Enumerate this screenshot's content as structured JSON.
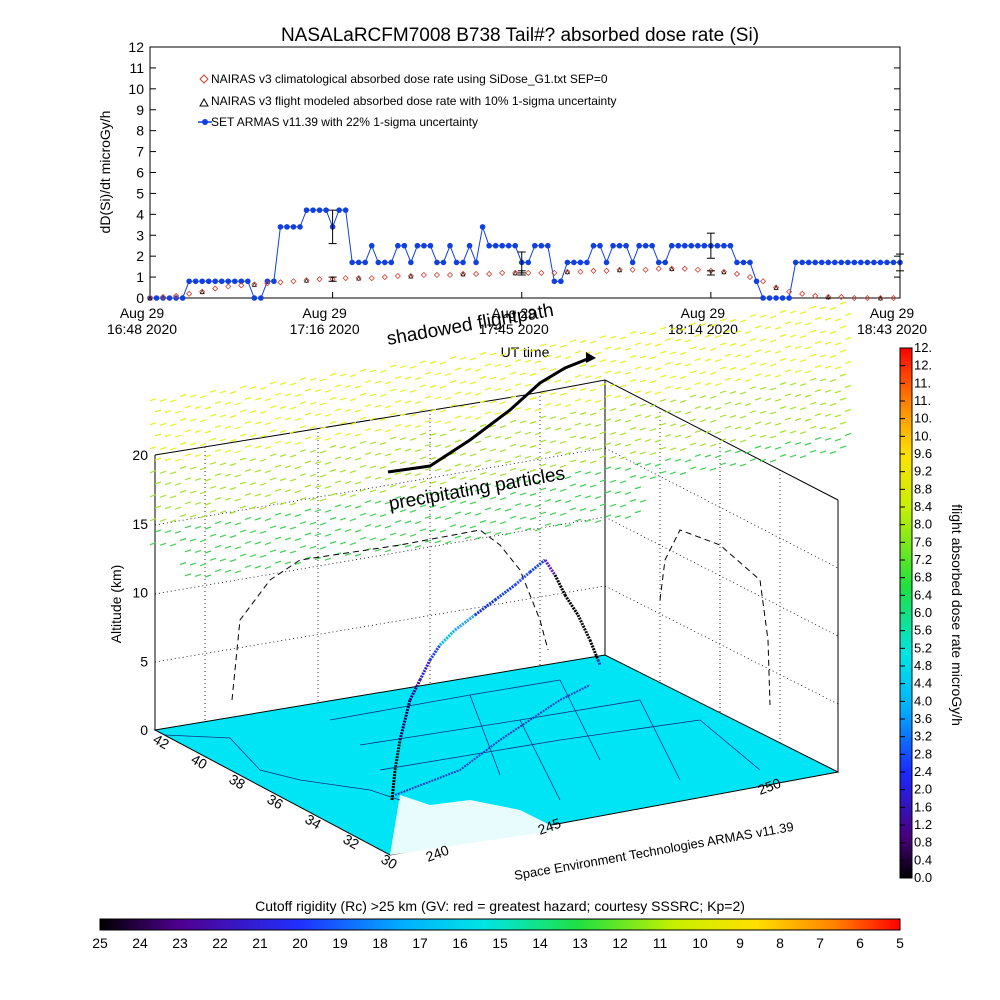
{
  "title": "NASALaRCFM7008  B738 Tail#? absorbed dose rate (Si)",
  "annotations": {
    "shadowed": "shadowed flightpath",
    "precip": "precipitating particles"
  },
  "credit": "Space Environment Technologies ARMAS v11.39",
  "colors": {
    "nairas_clim": "#d04030",
    "nairas_flight": "#000000",
    "armas": "#1040e0",
    "cutoff_surface": "#00e5f5"
  },
  "chart_data": [
    {
      "type": "line",
      "xlabel": "UT time",
      "ylabel": "dD(Si)/dt microGy/h",
      "ylim": [
        0,
        12
      ],
      "xlim": [
        0,
        115
      ],
      "yticks": [
        "0",
        "1",
        "2",
        "3",
        "4",
        "5",
        "6",
        "7",
        "8",
        "9",
        "10",
        "11",
        "12"
      ],
      "xticks": [
        {
          "v": 0,
          "l1": "Aug 29",
          "l2": "16:48 2020"
        },
        {
          "v": 28,
          "l1": "Aug 29",
          "l2": "17:16 2020"
        },
        {
          "v": 57,
          "l1": "Aug 29",
          "l2": "17:45 2020"
        },
        {
          "v": 86,
          "l1": "Aug 29",
          "l2": "18:14 2020"
        },
        {
          "v": 115,
          "l1": "Aug 29",
          "l2": "18:43 2020"
        }
      ],
      "legend": [
        "NAIRAS v3 climatological absorbed dose rate using SiDose_G1.txt SEP=0",
        "NAIRAS v3 flight modeled absorbed dose rate with 10% 1-sigma uncertainty",
        "SET ARMAS v11.39 with 22% 1-sigma uncertainty"
      ],
      "series": [
        {
          "name": "SET ARMAS v11.39 with 22% 1-sigma uncertainty",
          "x": [
            0,
            1,
            2,
            3,
            4,
            5,
            6,
            7,
            8,
            9,
            10,
            11,
            12,
            13,
            14,
            15,
            16,
            17,
            18,
            19,
            20,
            21,
            22,
            23,
            24,
            25,
            26,
            27,
            28,
            29,
            30,
            31,
            32,
            33,
            34,
            35,
            36,
            37,
            38,
            39,
            40,
            41,
            42,
            43,
            44,
            45,
            46,
            47,
            48,
            49,
            50,
            51,
            52,
            53,
            54,
            55,
            56,
            57,
            58,
            59,
            60,
            61,
            62,
            63,
            64,
            65,
            66,
            67,
            68,
            69,
            70,
            71,
            72,
            73,
            74,
            75,
            76,
            77,
            78,
            79,
            80,
            81,
            82,
            83,
            84,
            85,
            86,
            87,
            88,
            89,
            90,
            91,
            92,
            93,
            94,
            95,
            96,
            97,
            98,
            99,
            100,
            101,
            102,
            103,
            104,
            105,
            106,
            107,
            108,
            109,
            110,
            111,
            112,
            113,
            114,
            115
          ],
          "y": [
            0,
            0,
            0,
            0,
            0,
            0,
            0.8,
            0.8,
            0.8,
            0.8,
            0.8,
            0.8,
            0.8,
            0.8,
            0.8,
            0.8,
            0,
            0,
            0.8,
            0.8,
            3.4,
            3.4,
            3.4,
            3.4,
            4.2,
            4.2,
            4.2,
            4.2,
            3.4,
            4.2,
            4.2,
            1.7,
            1.7,
            1.7,
            2.5,
            1.7,
            1.7,
            1.7,
            2.5,
            2.5,
            1.7,
            2.5,
            2.5,
            2.5,
            1.7,
            1.7,
            2.5,
            1.7,
            1.7,
            2.5,
            1.7,
            3.4,
            2.5,
            2.5,
            2.5,
            2.5,
            2.5,
            1.7,
            1.7,
            2.5,
            2.5,
            2.5,
            0.8,
            0.8,
            1.7,
            1.7,
            1.7,
            1.7,
            2.5,
            2.5,
            1.7,
            2.5,
            2.5,
            2.5,
            1.7,
            2.5,
            2.5,
            2.5,
            1.7,
            1.7,
            2.5,
            2.5,
            2.5,
            2.5,
            2.5,
            2.5,
            2.5,
            2.5,
            2.5,
            2.5,
            1.7,
            1.7,
            1.7,
            0.8,
            0,
            0,
            0,
            0,
            0,
            1.7,
            1.7,
            1.7,
            1.7,
            1.7,
            1.7,
            1.7,
            1.7,
            1.7,
            1.7,
            1.7,
            1.7,
            1.7,
            1.7,
            1.7,
            1.7,
            1.7
          ]
        },
        {
          "name": "NAIRAS v3 climatological absorbed dose rate using SiDose_G1.txt SEP=0",
          "x": [
            0,
            2,
            4,
            6,
            8,
            10,
            12,
            14,
            16,
            18,
            20,
            22,
            24,
            26,
            28,
            30,
            32,
            34,
            36,
            38,
            40,
            42,
            44,
            46,
            48,
            50,
            52,
            54,
            56,
            58,
            60,
            62,
            64,
            66,
            68,
            70,
            72,
            74,
            76,
            78,
            80,
            82,
            84,
            86,
            88,
            90,
            92,
            94,
            96,
            98,
            100,
            102,
            104,
            106,
            108,
            110,
            112,
            114
          ],
          "y": [
            0,
            0.05,
            0.1,
            0.2,
            0.3,
            0.45,
            0.55,
            0.6,
            0.65,
            0.7,
            0.75,
            0.8,
            0.85,
            0.9,
            0.9,
            0.95,
            0.95,
            0.95,
            1.0,
            1.05,
            1.05,
            1.1,
            1.1,
            1.1,
            1.15,
            1.15,
            1.15,
            1.2,
            1.2,
            1.2,
            1.2,
            1.2,
            1.25,
            1.25,
            1.3,
            1.3,
            1.35,
            1.35,
            1.35,
            1.4,
            1.4,
            1.4,
            1.35,
            1.3,
            1.25,
            1.15,
            1.0,
            0.8,
            0.5,
            0.3,
            0.2,
            0.1,
            0.05,
            0.05,
            0,
            0,
            0,
            0
          ]
        },
        {
          "name": "NAIRAS v3 flight modeled absorbed dose rate with 10% 1-sigma uncertainty",
          "x": [
            0,
            2,
            4,
            6,
            8,
            10,
            12,
            14,
            16,
            18,
            20,
            22,
            24,
            26,
            28,
            30,
            32,
            34,
            36,
            38,
            40,
            42,
            44,
            46,
            48,
            50,
            52,
            54,
            56,
            58,
            60,
            62,
            64,
            66,
            68,
            70,
            72,
            74,
            76,
            78,
            80,
            82,
            84,
            86,
            88,
            90,
            92,
            94,
            96,
            98,
            100,
            102,
            104,
            106,
            108,
            110,
            112,
            114
          ],
          "y": [
            0,
            0.05,
            0.1,
            0.2,
            0.3,
            0.45,
            0.55,
            0.6,
            0.65,
            0.7,
            0.75,
            0.8,
            0.85,
            0.9,
            0.9,
            0.95,
            0.95,
            0.95,
            1.0,
            1.05,
            1.05,
            1.1,
            1.1,
            1.1,
            1.15,
            1.15,
            1.15,
            1.2,
            1.2,
            1.2,
            1.2,
            1.2,
            1.25,
            1.25,
            1.3,
            1.3,
            1.35,
            1.35,
            1.35,
            1.4,
            1.4,
            1.4,
            1.35,
            1.3,
            1.25,
            1.15,
            1.0,
            0.8,
            0.5,
            0.3,
            0.2,
            0.1,
            0.05,
            0.05,
            0,
            0,
            0,
            0
          ]
        }
      ],
      "error_bars": [
        {
          "x": 28,
          "y": 3.4,
          "err": 0.8
        },
        {
          "x": 28,
          "y": 0.9,
          "err": 0.1
        },
        {
          "x": 57,
          "y": 1.7,
          "err": 0.5
        },
        {
          "x": 57,
          "y": 1.2,
          "err": 0.1
        },
        {
          "x": 86,
          "y": 2.5,
          "err": 0.6
        },
        {
          "x": 86,
          "y": 1.2,
          "err": 0.1
        },
        {
          "x": 115,
          "y": 1.7,
          "err": 0.4
        }
      ]
    },
    {
      "type": "scatter",
      "ylabel": "Altitude (km)",
      "zticks": [
        "0",
        "5",
        "10",
        "15",
        "20"
      ],
      "lat_ticks": [
        "42",
        "40",
        "38",
        "36",
        "34",
        "32",
        "30"
      ],
      "lon_ticks": [
        "240",
        "245",
        "250"
      ],
      "flight_altitude_km": [
        0,
        0.5,
        1,
        2,
        3,
        4,
        5,
        5.5,
        6,
        7,
        8,
        9,
        10,
        11,
        12,
        12.5,
        12.8,
        12.3,
        11.5,
        10.5,
        9.5,
        8.5,
        7.5,
        6.5,
        5.5,
        5
      ],
      "shadow_altitude_km": 20
    },
    {
      "type": "heatmap",
      "label": "flight absorbed dose rate microGy/h",
      "ticks": [
        "0.0",
        "0.4",
        "0.8",
        "1.2",
        "1.6",
        "2.0",
        "2.4",
        "2.8",
        "3.2",
        "3.6",
        "4.0",
        "4.4",
        "4.8",
        "5.2",
        "5.6",
        "6.0",
        "6.4",
        "6.8",
        "7.2",
        "7.6",
        "8.0",
        "8.4",
        "8.8",
        "9.2",
        "9.6",
        "10.",
        "10.",
        "11.",
        "11.",
        "12.",
        "12."
      ],
      "range": [
        0,
        12
      ]
    },
    {
      "type": "heatmap",
      "label": "Cutoff rigidity (Rc) >25 km (GV: red = greatest hazard; courtesy SSSRC; Kp=2)",
      "ticks": [
        "25",
        "24",
        "23",
        "22",
        "21",
        "20",
        "19",
        "18",
        "17",
        "16",
        "15",
        "14",
        "13",
        "12",
        "11",
        "10",
        "9",
        "8",
        "7",
        "6",
        "5"
      ],
      "range": [
        25,
        5
      ]
    }
  ]
}
